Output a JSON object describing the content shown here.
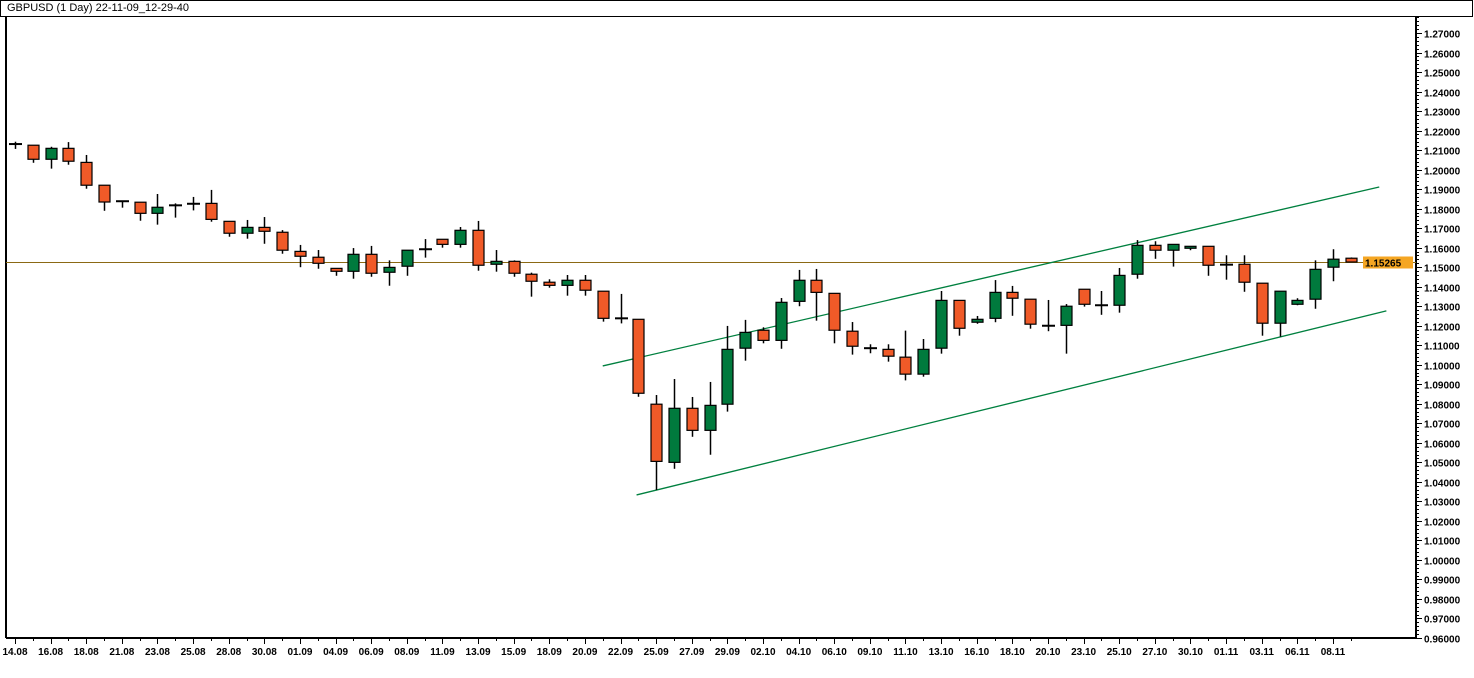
{
  "header": {
    "title": "GBPUSD (1 Day) 22-11-09_12-29-40"
  },
  "colors": {
    "bull": "#007a3d",
    "bear": "#f05a28",
    "outline": "#000000",
    "trendline": "#00803f",
    "price_line": "#8b6914",
    "price_badge": "#f5a623"
  },
  "chart_data": {
    "type": "candlestick",
    "title": "GBPUSD (1 Day) 22-11-09_12-29-40",
    "xlabel": "",
    "ylabel": "",
    "ylim": [
      0.96,
      1.275
    ],
    "grid": false,
    "y_ticks": [
      "1.27000",
      "1.26000",
      "1.25000",
      "1.24000",
      "1.23000",
      "1.22000",
      "1.21000",
      "1.20000",
      "1.19000",
      "1.18000",
      "1.17000",
      "1.16000",
      "1.15000",
      "1.14000",
      "1.13000",
      "1.12000",
      "1.11000",
      "1.10000",
      "1.09000",
      "1.08000",
      "1.07000",
      "1.06000",
      "1.05000",
      "1.04000",
      "1.03000",
      "1.02000",
      "1.01000",
      "1.00000",
      "0.99000",
      "0.98000",
      "0.97000",
      "0.96000"
    ],
    "x_labels": [
      "14.08",
      "16.08",
      "18.08",
      "21.08",
      "23.08",
      "25.08",
      "28.08",
      "30.08",
      "01.09",
      "04.09",
      "06.09",
      "08.09",
      "11.09",
      "13.09",
      "15.09",
      "18.09",
      "20.09",
      "22.09",
      "25.09",
      "27.09",
      "29.09",
      "02.10",
      "04.10",
      "06.10",
      "09.10",
      "11.10",
      "13.10",
      "16.10",
      "18.10",
      "20.10",
      "23.10",
      "25.10",
      "27.10",
      "30.10",
      "01.11",
      "03.11",
      "06.11",
      "08.11"
    ],
    "x_label_step": 2,
    "ohlc_fields": [
      "open",
      "high",
      "low",
      "close"
    ],
    "candles": [
      [
        1.2131,
        1.2143,
        1.2106,
        1.2131
      ],
      [
        1.2125,
        1.2125,
        1.2035,
        1.2053
      ],
      [
        1.2053,
        1.2117,
        1.2005,
        1.2109
      ],
      [
        1.2109,
        1.2141,
        1.2025,
        1.2043
      ],
      [
        1.2037,
        1.2075,
        1.1902,
        1.192
      ],
      [
        1.192,
        1.192,
        1.1789,
        1.1834
      ],
      [
        1.1838,
        1.1838,
        1.1805,
        1.1838
      ],
      [
        1.1833,
        1.1833,
        1.1738,
        1.1776
      ],
      [
        1.1776,
        1.1875,
        1.1718,
        1.1807
      ],
      [
        1.1817,
        1.1827,
        1.1754,
        1.1817
      ],
      [
        1.1825,
        1.186,
        1.1791,
        1.1825
      ],
      [
        1.1827,
        1.1896,
        1.1733,
        1.1745
      ],
      [
        1.1735,
        1.1735,
        1.1656,
        1.1674
      ],
      [
        1.1674,
        1.1742,
        1.1646,
        1.1704
      ],
      [
        1.1704,
        1.1757,
        1.162,
        1.1684
      ],
      [
        1.1679,
        1.169,
        1.1569,
        1.1587
      ],
      [
        1.1581,
        1.1614,
        1.15,
        1.1556
      ],
      [
        1.1551,
        1.1588,
        1.1492,
        1.152
      ],
      [
        1.1494,
        1.1494,
        1.1456,
        1.1479
      ],
      [
        1.1479,
        1.1598,
        1.1441,
        1.1566
      ],
      [
        1.1566,
        1.1609,
        1.1451,
        1.1469
      ],
      [
        1.1474,
        1.1535,
        1.1405,
        1.1499
      ],
      [
        1.1505,
        1.1587,
        1.1456,
        1.1587
      ],
      [
        1.1592,
        1.1644,
        1.1549,
        1.1592
      ],
      [
        1.1643,
        1.1643,
        1.16,
        1.1617
      ],
      [
        1.1617,
        1.1706,
        1.16,
        1.1689
      ],
      [
        1.1689,
        1.1737,
        1.1482,
        1.151
      ],
      [
        1.1515,
        1.1588,
        1.1477,
        1.153
      ],
      [
        1.153,
        1.1535,
        1.1451,
        1.1469
      ],
      [
        1.1464,
        1.1472,
        1.1349,
        1.1428
      ],
      [
        1.1423,
        1.1438,
        1.1395,
        1.1407
      ],
      [
        1.1407,
        1.146,
        1.1354,
        1.1433
      ],
      [
        1.1433,
        1.146,
        1.1354,
        1.1382
      ],
      [
        1.1377,
        1.1377,
        1.1221,
        1.1238
      ],
      [
        1.1238,
        1.1363,
        1.1212,
        1.1238
      ],
      [
        1.1233,
        1.1233,
        1.0836,
        1.0854
      ],
      [
        1.0798,
        1.0845,
        1.0358,
        1.0505
      ],
      [
        1.05,
        1.0927,
        1.0467,
        1.0777
      ],
      [
        1.0777,
        1.0835,
        1.0631,
        1.0664
      ],
      [
        1.0664,
        1.0912,
        1.0539,
        1.0792
      ],
      [
        1.0798,
        1.1199,
        1.076,
        1.1079
      ],
      [
        1.1085,
        1.123,
        1.1021,
        1.1166
      ],
      [
        1.1177,
        1.1192,
        1.111,
        1.1125
      ],
      [
        1.1125,
        1.1342,
        1.1082,
        1.132
      ],
      [
        1.1325,
        1.1486,
        1.13,
        1.1433
      ],
      [
        1.1433,
        1.1491,
        1.1226,
        1.1371
      ],
      [
        1.1366,
        1.1366,
        1.111,
        1.1177
      ],
      [
        1.1172,
        1.1219,
        1.1052,
        1.1095
      ],
      [
        1.1085,
        1.1105,
        1.1059,
        1.1085
      ],
      [
        1.1079,
        1.1105,
        1.1016,
        1.1044
      ],
      [
        1.1039,
        1.1175,
        1.092,
        1.0952
      ],
      [
        1.0952,
        1.1132,
        1.0939,
        1.1079
      ],
      [
        1.1085,
        1.1378,
        1.1057,
        1.133
      ],
      [
        1.133,
        1.133,
        1.1149,
        1.1187
      ],
      [
        1.1218,
        1.125,
        1.121,
        1.1233
      ],
      [
        1.1238,
        1.1434,
        1.1218,
        1.1371
      ],
      [
        1.1371,
        1.1404,
        1.1251,
        1.1341
      ],
      [
        1.1336,
        1.1336,
        1.1185,
        1.1208
      ],
      [
        1.12,
        1.1332,
        1.1172,
        1.12
      ],
      [
        1.1202,
        1.1311,
        1.1057,
        1.13
      ],
      [
        1.1387,
        1.1387,
        1.1298,
        1.131
      ],
      [
        1.1305,
        1.1378,
        1.1256,
        1.1305
      ],
      [
        1.1305,
        1.1496,
        1.1267,
        1.1458
      ],
      [
        1.1464,
        1.1639,
        1.1441,
        1.1612
      ],
      [
        1.1612,
        1.1633,
        1.1543,
        1.1587
      ],
      [
        1.1587,
        1.1617,
        1.1503,
        1.1617
      ],
      [
        1.1597,
        1.1607,
        1.1587,
        1.1607
      ],
      [
        1.1607,
        1.1607,
        1.1456,
        1.151
      ],
      [
        1.1513,
        1.1561,
        1.1436,
        1.1513
      ],
      [
        1.1515,
        1.1561,
        1.1374,
        1.1423
      ],
      [
        1.1418,
        1.1418,
        1.1149,
        1.1213
      ],
      [
        1.1213,
        1.1377,
        1.1144,
        1.1377
      ],
      [
        1.131,
        1.1341,
        1.1305,
        1.133
      ],
      [
        1.1336,
        1.1535,
        1.1287,
        1.1489
      ],
      [
        1.15,
        1.1592,
        1.1428,
        1.1541
      ],
      [
        1.1546,
        1.155,
        1.1525,
        1.15265
      ]
    ],
    "current_price": "1.15265",
    "trendlines": [
      {
        "name": "upper-channel",
        "from": [
          33.0,
          1.0994
        ],
        "to": [
          76.6,
          1.1911
        ]
      },
      {
        "name": "lower-channel",
        "from": [
          34.9,
          1.0333
        ],
        "to": [
          77.0,
          1.1276
        ]
      }
    ]
  }
}
